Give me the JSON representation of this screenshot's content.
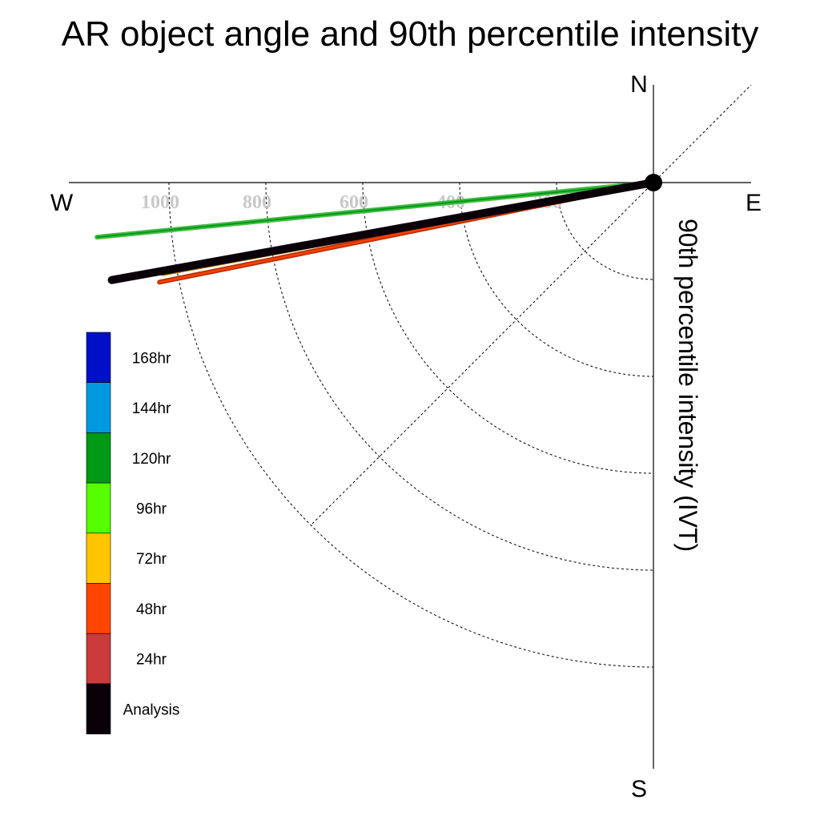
{
  "chart_data": {
    "type": "polar-quadrant-vector",
    "title": "AR object angle and 90th percentile intensity",
    "ylabel": "90th percentile intensity (IVT)",
    "compass": {
      "north": "N",
      "south": "S",
      "east": "E",
      "west": "W"
    },
    "radial_ticks": [
      200,
      400,
      600,
      800,
      1000
    ],
    "rlim": [
      0,
      1150
    ],
    "grid": "dotted arcs and 45-degree diagonal",
    "legend": [
      {
        "label": "168hr",
        "color": "#0010c8"
      },
      {
        "label": "144hr",
        "color": "#0099e0"
      },
      {
        "label": "120hr",
        "color": "#009a16"
      },
      {
        "label": "96hr",
        "color": "#55ff00"
      },
      {
        "label": "72hr",
        "color": "#ffc600"
      },
      {
        "label": "48hr",
        "color": "#ff4500"
      },
      {
        "label": "24hr",
        "color": "#cc3a3c"
      },
      {
        "label": "Analysis",
        "color": "#0a0008"
      }
    ],
    "series": [
      {
        "name": "120hr",
        "intensity": 1154,
        "angle_below_west_deg": 5.6,
        "color": "#009a16",
        "outline": "#44bb44"
      },
      {
        "name": "96hr",
        "intensity": 1040,
        "angle_below_west_deg": 10.1,
        "color": "#55ff00",
        "outline": "#2a7a00"
      },
      {
        "name": "72hr",
        "intensity": 1030,
        "angle_below_west_deg": 10.5,
        "color": "#ffc600",
        "outline": "#9a7000"
      },
      {
        "name": "48hr",
        "intensity": 1040,
        "angle_below_west_deg": 11.4,
        "color": "#ff4500",
        "outline": "#c03000"
      },
      {
        "name": "24hr",
        "intensity": 1087,
        "angle_below_west_deg": 10.2,
        "color": "#cc3a3c",
        "outline": "#cc3a3c"
      },
      {
        "name": "Analysis",
        "intensity": 1136,
        "angle_below_west_deg": 10.2,
        "color": "#0a0008",
        "outline": "#0a0008"
      }
    ]
  }
}
